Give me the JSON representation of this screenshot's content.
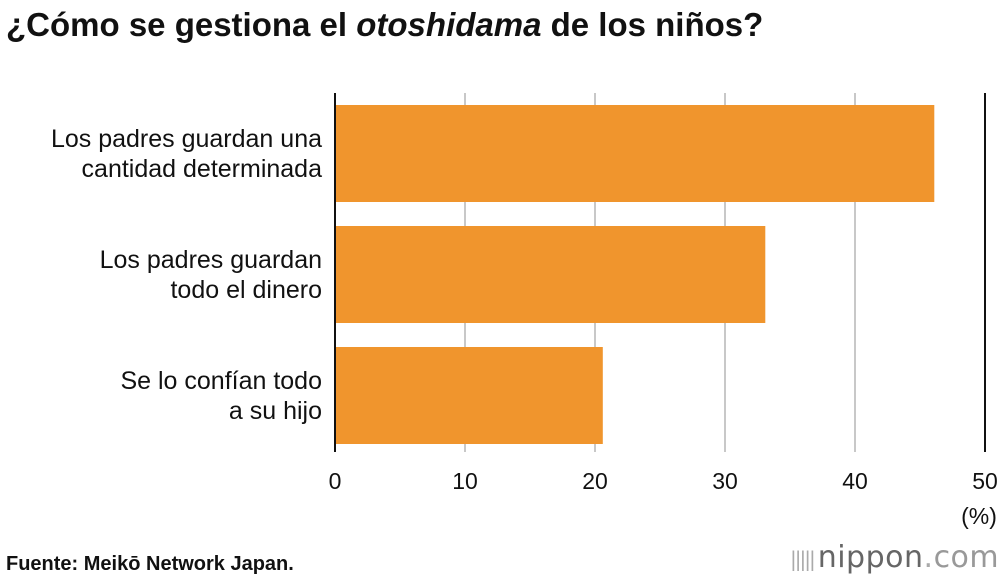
{
  "title": {
    "prefix": "¿Cómo se gestiona el ",
    "emphasis": "otoshidama",
    "suffix": " de los niños?"
  },
  "chart_data": {
    "type": "bar",
    "orientation": "horizontal",
    "categories": [
      [
        "Los padres guardan una",
        "cantidad determinada"
      ],
      [
        "Los padres guardan",
        "todo el dinero"
      ],
      [
        "Se lo confían todo",
        "a su hijo"
      ]
    ],
    "values": [
      46.1,
      33.1,
      20.6
    ],
    "xlim": [
      0,
      50
    ],
    "xticks": [
      0,
      10,
      20,
      30,
      40,
      50
    ],
    "unit_label": "(%)",
    "grid": true,
    "bar_color": "#F0952D"
  },
  "source": "Fuente: Meikō Network Japan.",
  "brand": {
    "bars_glyph": "|||||",
    "name": "nippon",
    "dot": ".",
    "tld": "com"
  }
}
